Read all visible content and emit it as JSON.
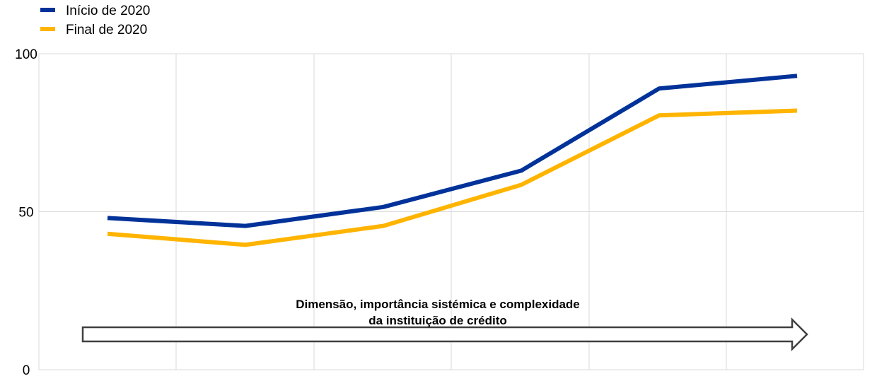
{
  "chart_data": {
    "type": "line",
    "title": "",
    "xlabel": "",
    "ylabel": "",
    "ylim": [
      0,
      100
    ],
    "y_ticks": [
      "0",
      "50",
      "100"
    ],
    "x_category_count": 6,
    "grid": true,
    "legend_placement": "top-left",
    "series": [
      {
        "name": "Início de 2020",
        "color": "#003299",
        "values": [
          48,
          45.5,
          51.5,
          63,
          89,
          93
        ]
      },
      {
        "name": "Final de 2020",
        "color": "#FFB400",
        "values": [
          43,
          39.5,
          45.5,
          58.5,
          80.5,
          82
        ]
      }
    ],
    "annotation": {
      "line1": "Dimensão, importância sistémica e complexidade",
      "line2": "da instituição de crédito"
    }
  }
}
